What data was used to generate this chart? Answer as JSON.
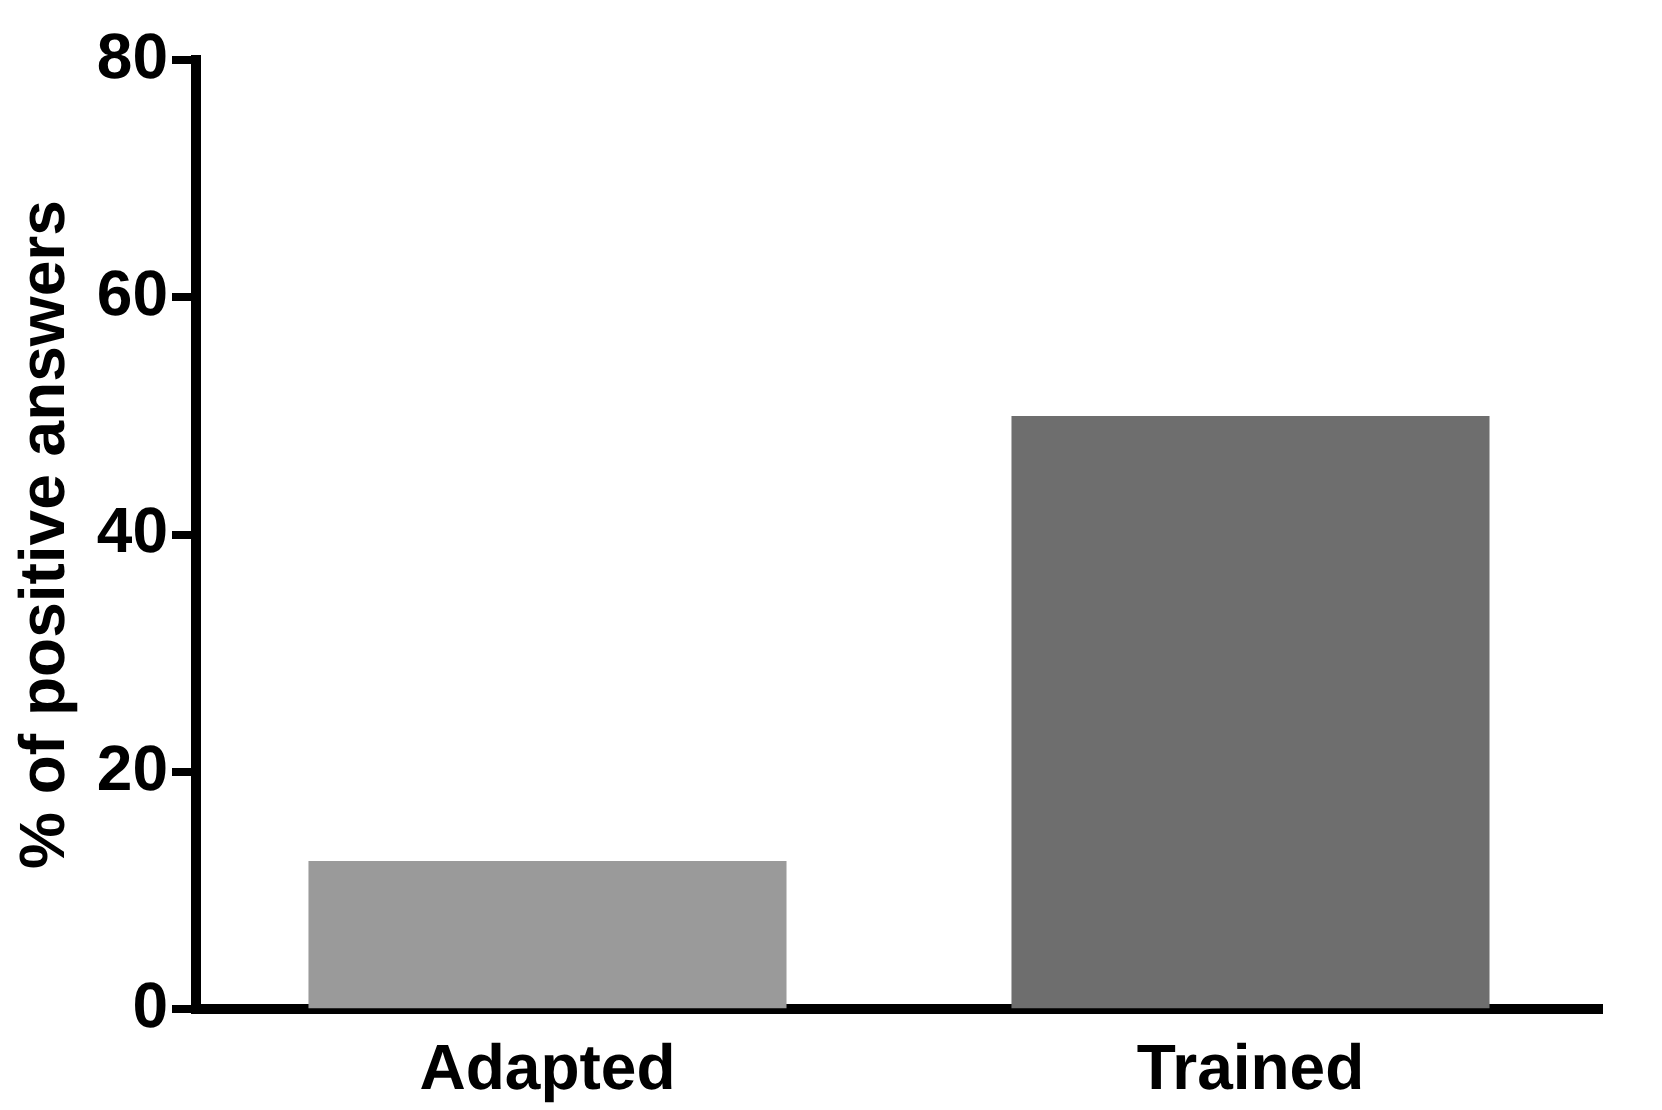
{
  "chart_data": {
    "type": "bar",
    "ylabel": "% of positive answers",
    "categories": [
      "Adapted",
      "Trained"
    ],
    "values": [
      12.5,
      50
    ],
    "colors": [
      "#9a9a9a",
      "#6e6e6e"
    ],
    "ylim": [
      0,
      80
    ],
    "yticks": [
      0,
      20,
      40,
      60,
      80
    ],
    "grid": false,
    "legend": false
  }
}
